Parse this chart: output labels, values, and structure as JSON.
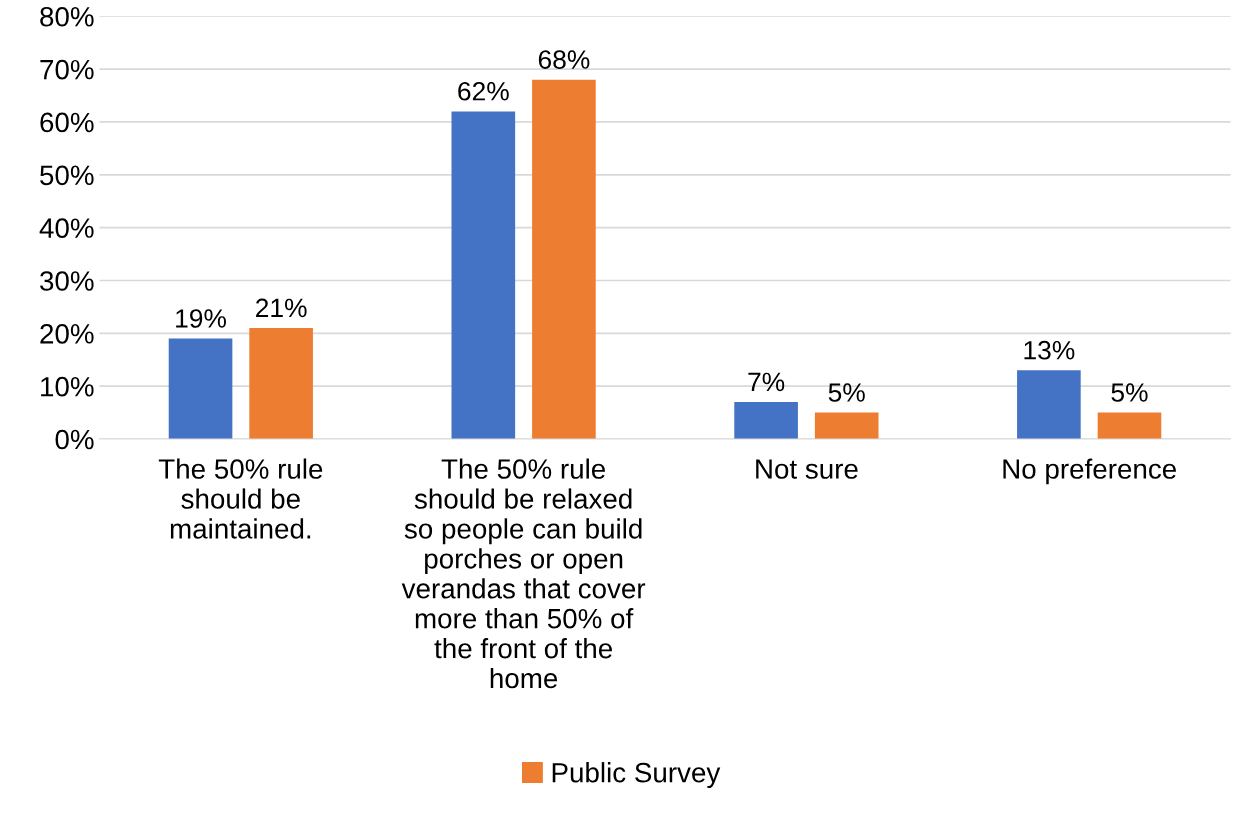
{
  "chart_data": {
    "type": "bar",
    "categories": [
      "The 50% rule\nshould be\nmaintained.",
      "The 50% rule\nshould be relaxed\nso people can build\nporches or open\nverandas that cover\nmore than 50% of\nthe front of the\nhome",
      "Not sure",
      "No preference"
    ],
    "series": [
      {
        "color": "#4472c4",
        "values": [
          19,
          62,
          7,
          13
        ],
        "value_labels": [
          "19%",
          "62%",
          "7%",
          "13%"
        ]
      },
      {
        "name": "Public Survey",
        "color": "#ed7d31",
        "values": [
          21,
          68,
          5,
          5
        ],
        "value_labels": [
          "21%",
          "68%",
          "5%",
          "5%"
        ]
      }
    ],
    "ylim": [
      0,
      80
    ],
    "yticks": [
      {
        "value": 0,
        "label": "0%"
      },
      {
        "value": 10,
        "label": "10%"
      },
      {
        "value": 20,
        "label": "20%"
      },
      {
        "value": 30,
        "label": "30%"
      },
      {
        "value": 40,
        "label": "40%"
      },
      {
        "value": 50,
        "label": "50%"
      },
      {
        "value": 60,
        "label": "60%"
      },
      {
        "value": 70,
        "label": "70%"
      },
      {
        "value": 80,
        "label": "80%"
      }
    ],
    "grid": "y",
    "legend": "bottom"
  }
}
